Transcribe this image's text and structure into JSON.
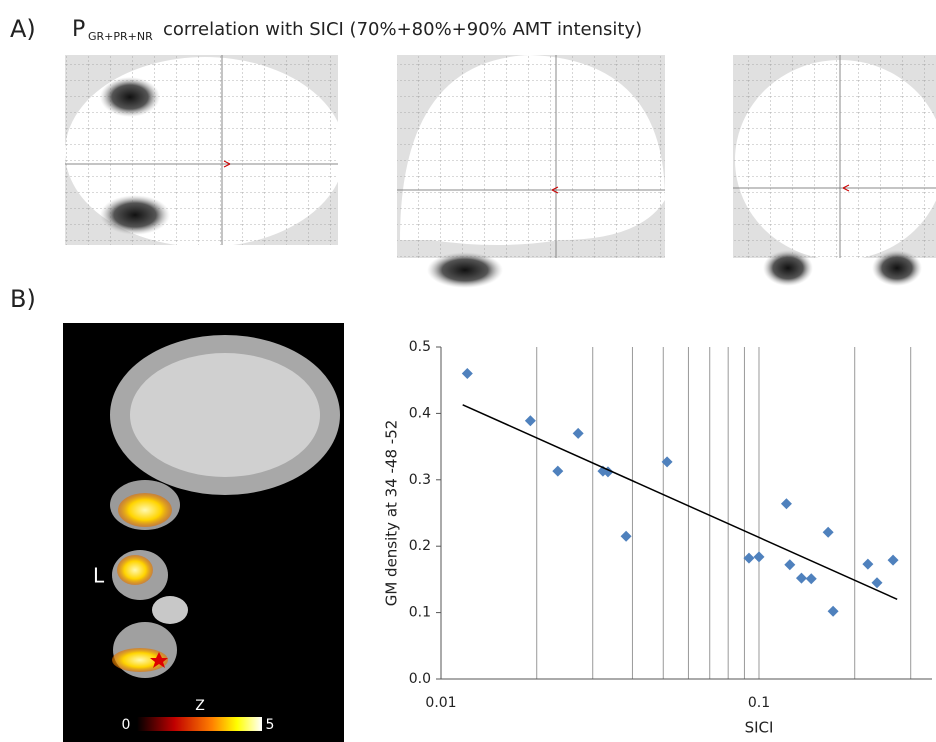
{
  "panel_a": {
    "label": "A)",
    "title_main": "P",
    "title_subscript": "GR+PR+NR",
    "title_rest": "correlation with SICI (70%+80%+90% AMT intensity)"
  },
  "panel_b": {
    "label": "B)",
    "side_label": "L",
    "colorbar_title": "Z",
    "colorbar_min": "0",
    "colorbar_max": "5"
  },
  "chart_data": {
    "type": "scatter",
    "x_label": "SICI",
    "y_label": "GM density at   34  -48  -52",
    "x": [
      0.0121,
      0.0191,
      0.0233,
      0.027,
      0.0323,
      0.0335,
      0.0382,
      0.0514,
      0.093,
      0.1,
      0.122,
      0.125,
      0.136,
      0.146,
      0.165,
      0.171,
      0.22,
      0.235,
      0.264
    ],
    "values": [
      0.46,
      0.389,
      0.313,
      0.37,
      0.313,
      0.312,
      0.215,
      0.327,
      0.182,
      0.184,
      0.264,
      0.172,
      0.152,
      0.151,
      0.221,
      0.102,
      0.173,
      0.145,
      0.179
    ],
    "color": "#4f81bd",
    "trendline": {
      "x": [
        0.0117,
        0.272
      ],
      "y": [
        0.413,
        0.12
      ],
      "color": "#000000"
    },
    "xscale": "log",
    "xlim": [
      0.01,
      0.35
    ],
    "ylim": [
      0,
      0.5
    ],
    "xticks": [
      0.01,
      0.1
    ],
    "minor_xticks": [
      0.02,
      0.03,
      0.04,
      0.05,
      0.06,
      0.07,
      0.08,
      0.09,
      0.2,
      0.3
    ],
    "yticks": [
      {
        "value": 0,
        "label": "0.0"
      },
      0.1,
      0.2,
      0.3,
      0.4,
      0.5
    ],
    "grid": true
  }
}
